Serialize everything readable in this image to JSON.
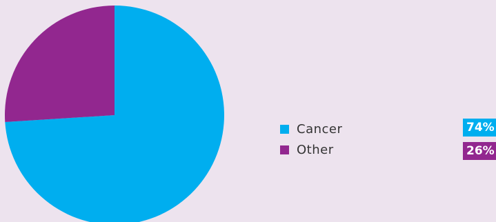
{
  "chart_data": {
    "type": "pie",
    "slices": [
      {
        "label": "Cancer",
        "value": 74,
        "percent_label": "74%",
        "color": "#00aeef"
      },
      {
        "label": "Other",
        "value": 26,
        "percent_label": "26%",
        "color": "#92278f"
      }
    ],
    "legend_position": "right",
    "background": "#ede3ee"
  }
}
